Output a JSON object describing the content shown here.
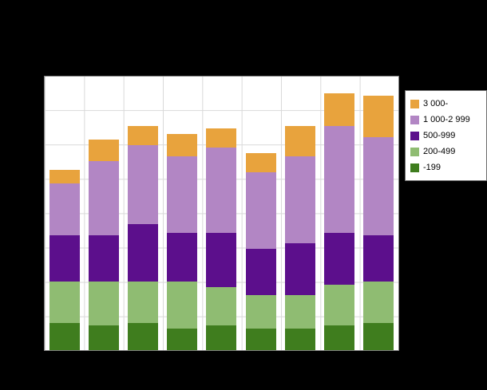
{
  "chart_data": {
    "type": "bar",
    "stacked": true,
    "title": "",
    "xlabel": "",
    "ylabel": "",
    "categories": [
      "",
      "",
      "",
      "",
      "",
      "",
      "",
      "",
      ""
    ],
    "series": [
      {
        "name": "-199",
        "color": "#3f7d1e",
        "values": [
          10,
          9,
          10,
          8,
          9,
          8,
          8,
          9,
          10
        ]
      },
      {
        "name": "200-499",
        "color": "#8fbc72",
        "values": [
          15,
          16,
          15,
          17,
          14,
          12,
          12,
          15,
          15
        ]
      },
      {
        "name": "500-999",
        "color": "#5c0f8c",
        "values": [
          17,
          17,
          21,
          18,
          20,
          17,
          19,
          19,
          17
        ]
      },
      {
        "name": "1 000-2 999",
        "color": "#b286c4",
        "values": [
          19,
          27,
          29,
          28,
          31,
          28,
          32,
          39,
          36
        ]
      },
      {
        "name": "3 000-",
        "color": "#e8a33d",
        "values": [
          5,
          8,
          7,
          8,
          7,
          7,
          11,
          12,
          15
        ]
      }
    ],
    "ylim": [
      0,
      100
    ],
    "grid": true,
    "legend_position": "right"
  },
  "legend": {
    "items": [
      {
        "label": "3 000-",
        "color": "#e8a33d"
      },
      {
        "label": "1 000-2 999",
        "color": "#b286c4"
      },
      {
        "label": "500-999",
        "color": "#5c0f8c"
      },
      {
        "label": "200-499",
        "color": "#8fbc72"
      },
      {
        "label": "-199",
        "color": "#3f7d1e"
      }
    ]
  }
}
